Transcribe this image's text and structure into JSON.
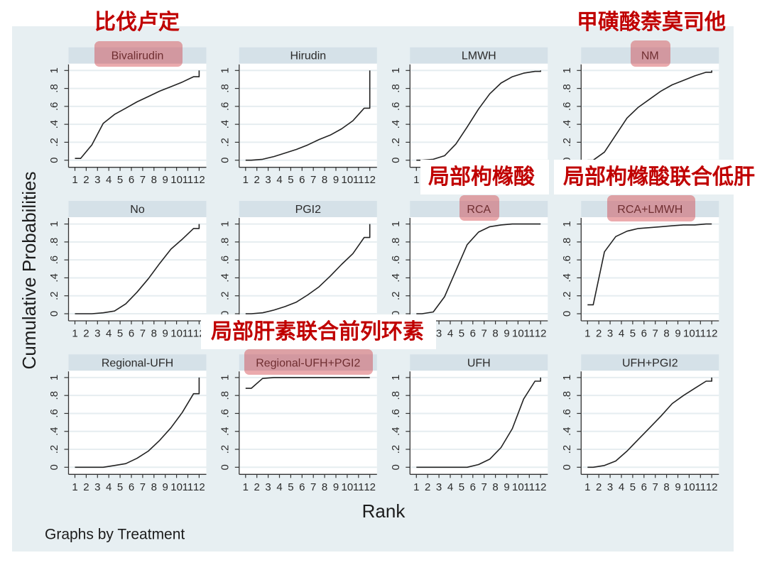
{
  "annotations": [
    {
      "target": "Bivalirudin",
      "text": "比伐卢定"
    },
    {
      "target": "NM",
      "text": "甲磺酸萘莫司他"
    },
    {
      "target": "RCA",
      "text": "局部枸橼酸"
    },
    {
      "target": "RCA+LMWH",
      "text": "局部枸橼酸联合低肝"
    },
    {
      "target": "Regional-UFH+PGI2",
      "text": "局部肝素联合前列环素"
    }
  ],
  "colors": {
    "annotation_text": "#c00000",
    "highlight": "#cf353b",
    "graph_background": "#e7eff2",
    "header_background": "#d5e1e8",
    "plot_background": "#ffffff",
    "line": "#222222",
    "grid": "#e6edf0",
    "axis": "#333333"
  },
  "chart_data": {
    "type": "line",
    "title": "",
    "xlabel": "Rank",
    "ylabel": "Cumulative Probabilities",
    "note": "Graphs by Treatment",
    "layout": {
      "rows": 3,
      "cols": 4,
      "by": "Treatment"
    },
    "x": [
      1,
      2,
      3,
      4,
      5,
      6,
      7,
      8,
      9,
      10,
      11,
      12
    ],
    "xtick_labels": [
      "1",
      "2",
      "3",
      "4",
      "5",
      "6",
      "7",
      "8",
      "9",
      "10",
      "11",
      "12"
    ],
    "yticks": [
      0,
      0.2,
      0.4,
      0.6,
      0.8,
      1
    ],
    "ytick_labels": [
      "0",
      ".2",
      ".4",
      ".6",
      ".8",
      "1"
    ],
    "xlim": [
      1,
      12
    ],
    "ylim": [
      0,
      1
    ],
    "grid": true,
    "series": [
      {
        "name": "Bivalirudin",
        "highlighted": true,
        "values": [
          0.02,
          0.17,
          0.41,
          0.51,
          0.58,
          0.65,
          0.71,
          0.77,
          0.82,
          0.87,
          0.93,
          1.0
        ]
      },
      {
        "name": "Hirudin",
        "highlighted": false,
        "values": [
          0.0,
          0.01,
          0.04,
          0.08,
          0.12,
          0.17,
          0.23,
          0.28,
          0.35,
          0.44,
          0.58,
          1.0
        ]
      },
      {
        "name": "LMWH",
        "highlighted": false,
        "values": [
          0.0,
          0.01,
          0.05,
          0.18,
          0.37,
          0.57,
          0.74,
          0.86,
          0.93,
          0.97,
          0.99,
          1.0
        ]
      },
      {
        "name": "NM",
        "highlighted": true,
        "values": [
          0.0,
          0.09,
          0.28,
          0.47,
          0.59,
          0.68,
          0.77,
          0.84,
          0.89,
          0.94,
          0.98,
          1.0
        ]
      },
      {
        "name": "No",
        "highlighted": false,
        "values": [
          0.0,
          0.0,
          0.01,
          0.03,
          0.11,
          0.24,
          0.39,
          0.56,
          0.72,
          0.83,
          0.95,
          1.0
        ]
      },
      {
        "name": "PGI2",
        "highlighted": false,
        "values": [
          0.0,
          0.01,
          0.04,
          0.08,
          0.13,
          0.21,
          0.3,
          0.42,
          0.55,
          0.67,
          0.85,
          1.0
        ]
      },
      {
        "name": "RCA",
        "highlighted": true,
        "values": [
          0.0,
          0.02,
          0.19,
          0.48,
          0.77,
          0.91,
          0.97,
          0.99,
          1.0,
          1.0,
          1.0,
          1.0
        ]
      },
      {
        "name": "RCA+LMWH",
        "highlighted": true,
        "values": [
          0.1,
          0.69,
          0.86,
          0.92,
          0.95,
          0.96,
          0.97,
          0.98,
          0.99,
          0.99,
          1.0,
          1.0
        ]
      },
      {
        "name": "Regional-UFH",
        "highlighted": false,
        "values": [
          0.0,
          0.0,
          0.0,
          0.02,
          0.04,
          0.1,
          0.18,
          0.3,
          0.44,
          0.61,
          0.82,
          1.0
        ]
      },
      {
        "name": "Regional-UFH+PGI2",
        "highlighted": true,
        "values": [
          0.88,
          0.99,
          1.0,
          1.0,
          1.0,
          1.0,
          1.0,
          1.0,
          1.0,
          1.0,
          1.0,
          1.0
        ]
      },
      {
        "name": "UFH",
        "highlighted": false,
        "values": [
          0.0,
          0.0,
          0.0,
          0.0,
          0.0,
          0.03,
          0.09,
          0.22,
          0.43,
          0.76,
          0.96,
          1.0
        ]
      },
      {
        "name": "UFH+PGI2",
        "highlighted": false,
        "values": [
          0.0,
          0.02,
          0.07,
          0.18,
          0.31,
          0.44,
          0.57,
          0.71,
          0.8,
          0.88,
          0.96,
          1.0
        ]
      }
    ]
  }
}
